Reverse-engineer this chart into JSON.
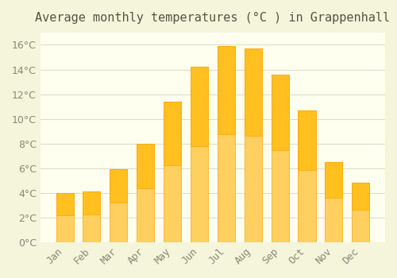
{
  "title": "Average monthly temperatures (°C ) in Grappenhall",
  "months": [
    "Jan",
    "Feb",
    "Mar",
    "Apr",
    "May",
    "Jun",
    "Jul",
    "Aug",
    "Sep",
    "Oct",
    "Nov",
    "Dec"
  ],
  "temperatures": [
    4.0,
    4.1,
    5.9,
    8.0,
    11.4,
    14.2,
    15.9,
    15.7,
    13.6,
    10.7,
    6.5,
    4.8
  ],
  "bar_color_top": "#FFC020",
  "bar_color_bottom": "#FFD060",
  "bar_edge_color": "#FFA500",
  "background_color": "#F5F5DC",
  "plot_bg_color": "#FFFFF0",
  "grid_color": "#DDDDCC",
  "text_color": "#888877",
  "ylim": [
    0,
    17
  ],
  "yticks": [
    0,
    2,
    4,
    6,
    8,
    10,
    12,
    14,
    16
  ],
  "title_fontsize": 11,
  "tick_fontsize": 9
}
